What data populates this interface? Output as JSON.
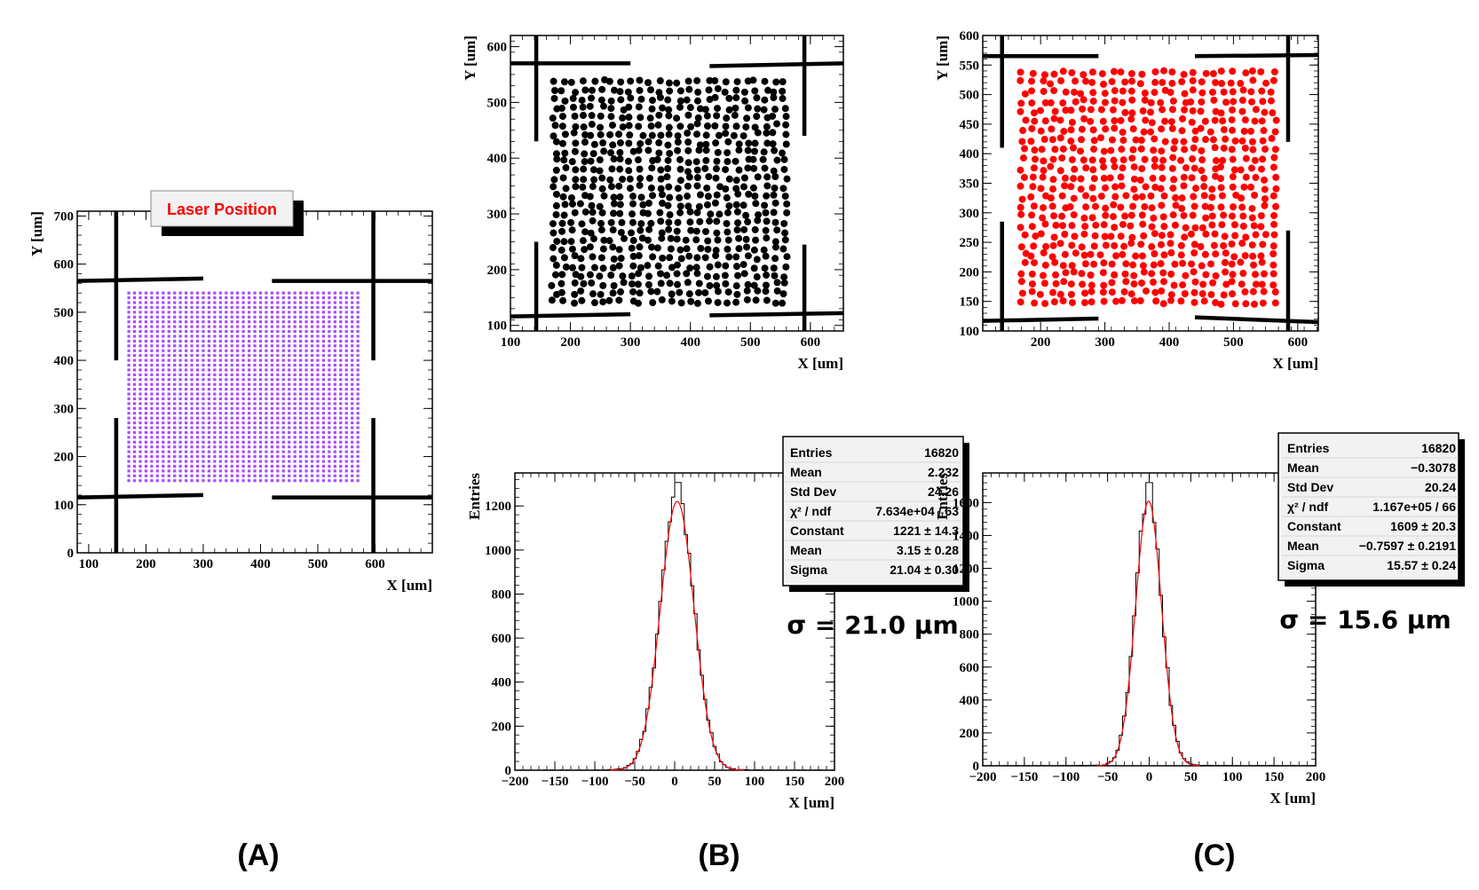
{
  "colors": {
    "laser": "#a64dff",
    "panel_b": "#000000",
    "panel_c": "#ff0000",
    "fit": "#ff0000",
    "hist": "#000000"
  },
  "panel_labels": {
    "a": "(A)",
    "b": "(B)",
    "c": "(C)"
  },
  "chart_data": [
    {
      "id": "A",
      "type": "scatter",
      "legend": "Laser Position",
      "xlabel": "X [um]",
      "ylabel": "Y [um]",
      "xlim": [
        80,
        700
      ],
      "ylim": [
        0,
        710
      ],
      "xticks": [
        "100",
        "200",
        "300",
        "400",
        "500",
        "600"
      ],
      "yticks": [
        "0",
        "100",
        "200",
        "300",
        "400",
        "500",
        "600",
        "700"
      ],
      "grid": {
        "x_start": 170,
        "x_step": 10,
        "x_count": 41,
        "y_start": 150,
        "y_step": 10,
        "y_count": 40
      },
      "note_grid": "regular lattice of laser spots from x=170 to 570 um and y=150 to 540 um"
    },
    {
      "id": "B",
      "type": "scatter",
      "xlabel": "X [um]",
      "ylabel": "Y [um]",
      "xlim": [
        100,
        655
      ],
      "ylim": [
        90,
        620
      ],
      "xticks": [
        "100",
        "200",
        "300",
        "400",
        "500",
        "600"
      ],
      "yticks": [
        "100",
        "200",
        "300",
        "400",
        "500",
        "600"
      ],
      "region": {
        "x": [
          165,
          565
        ],
        "y": [
          135,
          545
        ]
      }
    },
    {
      "id": "C",
      "type": "scatter",
      "xlabel": "X [um]",
      "ylabel": "Y [um]",
      "xlim": [
        110,
        632
      ],
      "ylim": [
        100,
        600
      ],
      "xticks": [
        "200",
        "300",
        "400",
        "500",
        "600"
      ],
      "yticks": [
        "100",
        "150",
        "200",
        "250",
        "300",
        "350",
        "400",
        "450",
        "500",
        "550",
        "600"
      ],
      "region": {
        "x": [
          165,
          570
        ],
        "y": [
          140,
          545
        ]
      }
    },
    {
      "id": "B-hist",
      "type": "histogram",
      "xlabel": "X [um]",
      "ylabel": "Entries",
      "xlim": [
        -200,
        200
      ],
      "ylim": [
        0,
        1350
      ],
      "xticks": [
        "−200",
        "−150",
        "−100",
        "−50",
        "0",
        "50",
        "100",
        "150",
        "200"
      ],
      "yticks": [
        "0",
        "200",
        "400",
        "600",
        "800",
        "1000",
        "1200"
      ],
      "fit": {
        "constant": 1221,
        "mean": 3.15,
        "sigma": 21.04
      },
      "stats": [
        {
          "label": "Entries",
          "value": "16820"
        },
        {
          "label": "Mean",
          "value": "2.232"
        },
        {
          "label": "Std Dev",
          "value": "24.26"
        },
        {
          "label": "χ² / ndf",
          "value": "7.634e+04 / 63"
        },
        {
          "label": "Constant",
          "value": "1221 ± 14.3"
        },
        {
          "label": "Mean",
          "value": "3.15 ± 0.28"
        },
        {
          "label": "Sigma",
          "value": "21.04 ± 0.30"
        }
      ],
      "annotation": "σ = 21.0 μm"
    },
    {
      "id": "C-hist",
      "type": "histogram",
      "xlabel": "X [um]",
      "ylabel": "Entries",
      "xlim": [
        -200,
        200
      ],
      "ylim": [
        0,
        1780
      ],
      "xticks": [
        "−200",
        "−150",
        "−100",
        "−50",
        "0",
        "50",
        "100",
        "150",
        "200"
      ],
      "yticks": [
        "0",
        "200",
        "400",
        "600",
        "800",
        "1000",
        "1200",
        "1400",
        "1600"
      ],
      "fit": {
        "constant": 1609,
        "mean": -0.7597,
        "sigma": 15.57
      },
      "stats": [
        {
          "label": "Entries",
          "value": "16820"
        },
        {
          "label": "Mean",
          "value": "−0.3078"
        },
        {
          "label": "Std Dev",
          "value": "20.24"
        },
        {
          "label": "χ² / ndf",
          "value": "1.167e+05 / 66"
        },
        {
          "label": "Constant",
          "value": "1609 ± 20.3"
        },
        {
          "label": "Mean",
          "value": "−0.7597 ± 0.2191"
        },
        {
          "label": "Sigma",
          "value": "15.57 ± 0.24"
        }
      ],
      "annotation": "σ = 15.6 μm"
    }
  ]
}
